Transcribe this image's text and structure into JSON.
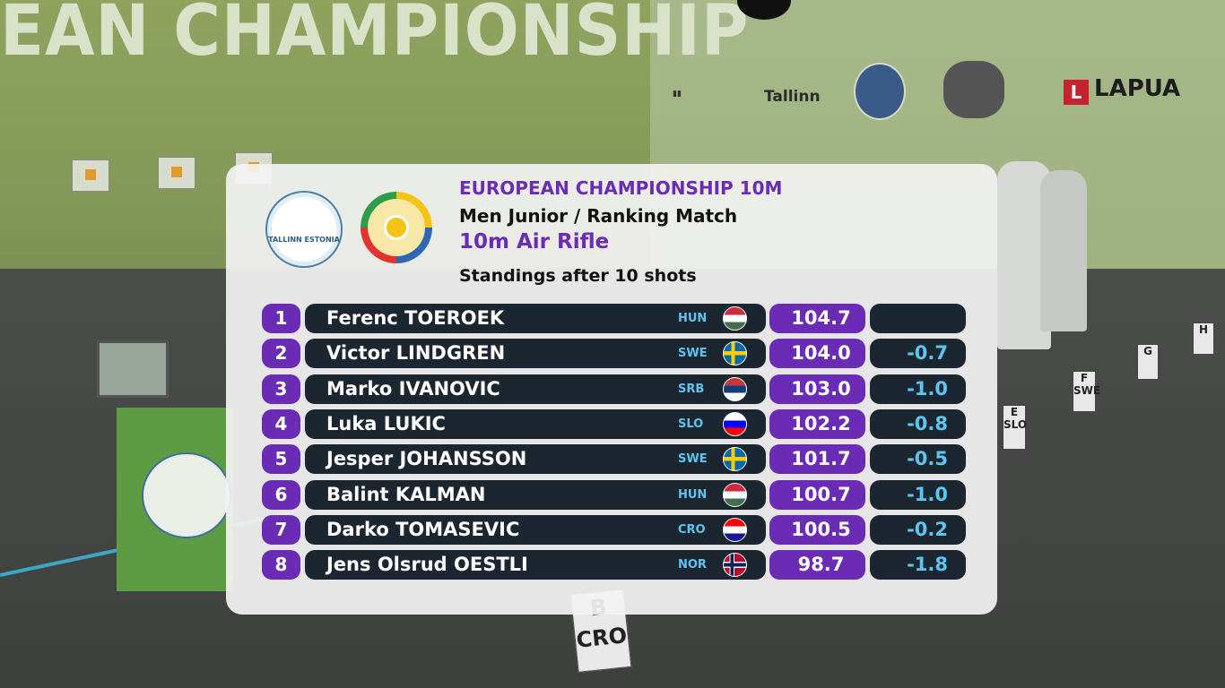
{
  "scene": {
    "banner": "EAN CHAMPIONSHIP",
    "sponsors": [
      "Tallinn",
      "LAPUA"
    ],
    "stands": [
      "B CRO",
      "E SLO",
      "F SWE",
      "G",
      "H"
    ]
  },
  "overlay": {
    "event_title": "EUROPEAN CHAMPIONSHIP 10M",
    "category": "Men Junior / Ranking Match",
    "discipline": "10m Air Rifle",
    "status": "Standings after 10 shots",
    "logo_text": "TALLINN ESTONIA"
  },
  "accent": "#6b2cb5",
  "standings": [
    {
      "rank": "1",
      "name": "Ferenc TOEROEK",
      "nat": "HUN",
      "score": "104.7",
      "diff": "",
      "flag": [
        "#cd2a3e",
        "#ffffff",
        "#436f4d"
      ]
    },
    {
      "rank": "2",
      "name": "Victor LINDGREN",
      "nat": "SWE",
      "score": "104.0",
      "diff": "-0.7",
      "flag": [
        "swe"
      ]
    },
    {
      "rank": "3",
      "name": "Marko IVANOVIC",
      "nat": "SRB",
      "score": "103.0",
      "diff": "-1.0",
      "flag": [
        "#c6363c",
        "#0c4076",
        "#ffffff"
      ]
    },
    {
      "rank": "4",
      "name": "Luka LUKIC",
      "nat": "SLO",
      "score": "102.2",
      "diff": "-0.8",
      "flag": [
        "#ffffff",
        "#0000ff",
        "#ff0000"
      ]
    },
    {
      "rank": "5",
      "name": "Jesper JOHANSSON",
      "nat": "SWE",
      "score": "101.7",
      "diff": "-0.5",
      "flag": [
        "swe"
      ]
    },
    {
      "rank": "6",
      "name": "Balint KALMAN",
      "nat": "HUN",
      "score": "100.7",
      "diff": "-1.0",
      "flag": [
        "#cd2a3e",
        "#ffffff",
        "#436f4d"
      ]
    },
    {
      "rank": "7",
      "name": "Darko TOMASEVIC",
      "nat": "CRO",
      "score": "100.5",
      "diff": "-0.2",
      "flag": [
        "#ff0000",
        "#ffffff",
        "#171796"
      ]
    },
    {
      "rank": "8",
      "name": "Jens Olsrud OESTLI",
      "nat": "NOR",
      "score": "98.7",
      "diff": "-1.8",
      "flag": [
        "nor"
      ]
    }
  ]
}
